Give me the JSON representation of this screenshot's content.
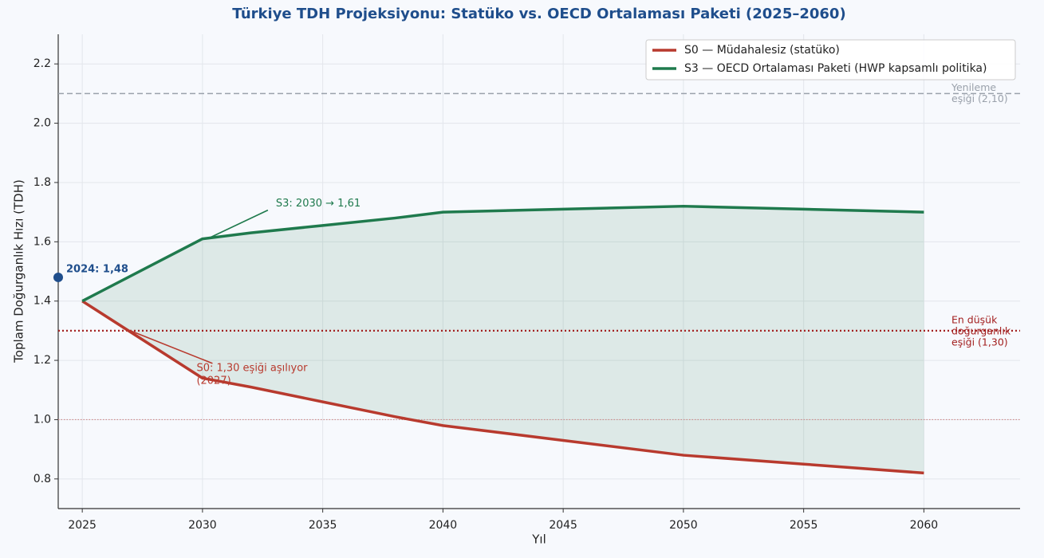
{
  "chart_data": {
    "type": "line",
    "title": "Türkiye TDH Projeksiyonu: Statüko vs. OECD Ortalaması Paketi (2025–2060)",
    "xlabel": "Yıl",
    "ylabel": "Toplam Doğurganlık Hızı (TDH)",
    "x": [
      2025,
      2030,
      2032,
      2035,
      2038,
      2040,
      2045,
      2050,
      2055,
      2060
    ],
    "series": [
      {
        "name": "S0 — Müdahalesiz (statüko)",
        "color": "#b83a2e",
        "values": [
          1.4,
          1.14,
          1.11,
          1.06,
          1.01,
          0.98,
          0.93,
          0.88,
          0.85,
          0.82
        ]
      },
      {
        "name": "S3 — OECD Ortalaması Paketi (HWP kapsamlı politika)",
        "color": "#1f7a4d",
        "values": [
          1.4,
          1.61,
          1.63,
          1.655,
          1.68,
          1.7,
          1.71,
          1.72,
          1.71,
          1.7
        ]
      }
    ],
    "fill_between": true,
    "highlight": {
      "x": 2024,
      "value": 1.48,
      "label": "2024: 1,48",
      "color": "#1f4e8c"
    },
    "reference_lines": [
      {
        "value": 2.1,
        "label": [
          "Yenileme",
          "eşiği (2,10)"
        ],
        "color": "#9aa1ab",
        "style": "dashed"
      },
      {
        "value": 1.3,
        "label": [
          "En düşük",
          "doğurganlık",
          "eşiği (1,30)"
        ],
        "color": "#a32020",
        "style": "dotted"
      },
      {
        "value": 1.0,
        "color": "#d08a8a",
        "style": "fine"
      }
    ],
    "annotations": [
      {
        "text": [
          "S3: 2030 → 1,61"
        ],
        "x": 2030,
        "y": 1.61,
        "color": "#1f7a4d",
        "side": "up"
      },
      {
        "text": [
          "S0: 1,30 eşiği aşılıyor",
          "(2027)"
        ],
        "x": 2027,
        "y": 1.3,
        "color": "#b83a2e",
        "side": "down"
      }
    ],
    "xlim": [
      2024,
      2064
    ],
    "ylim": [
      0.7,
      2.3
    ],
    "xticks": [
      2025,
      2030,
      2035,
      2040,
      2045,
      2050,
      2055,
      2060
    ],
    "yticks": [
      0.8,
      {
        "value": 1.0,
        "label": "1.0"
      },
      1.2,
      1.4,
      1.6,
      1.8,
      {
        "value": 2.0,
        "label": "2.0"
      },
      2.2
    ],
    "grid": true,
    "legend": "upper right"
  }
}
